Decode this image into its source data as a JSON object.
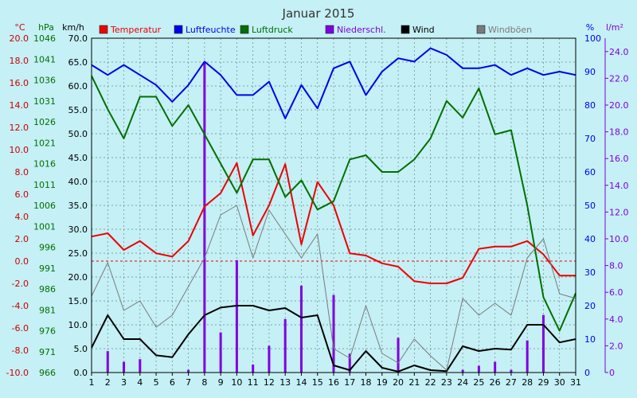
{
  "chart_data": {
    "type": "line",
    "title": "Januar 2015",
    "axis_units": {
      "temperature": "°C",
      "pressure": "hPa",
      "wind": "km/h",
      "humidity": "%",
      "precipitation": "l/m²"
    },
    "x": [
      1,
      2,
      3,
      4,
      5,
      6,
      7,
      8,
      9,
      10,
      11,
      12,
      13,
      14,
      15,
      16,
      17,
      18,
      19,
      20,
      21,
      22,
      23,
      24,
      25,
      26,
      27,
      28,
      29,
      30,
      31
    ],
    "axes": {
      "temperature": {
        "range": [
          -10,
          20
        ],
        "ticks": [
          "-10.0",
          "-8.0",
          "-6.0",
          "-4.0",
          "-2.0",
          "0.0",
          "2.0",
          "4.0",
          "6.0",
          "8.0",
          "10.0",
          "12.0",
          "14.0",
          "16.0",
          "18.0",
          "20.0"
        ]
      },
      "pressure": {
        "range": [
          966,
          1046
        ],
        "ticks": [
          "966",
          "971",
          "976",
          "981",
          "986",
          "991",
          "996",
          "1001",
          "1006",
          "1011",
          "1016",
          "1021",
          "1026",
          "1031",
          "1036",
          "1041",
          "1046"
        ]
      },
      "wind": {
        "range": [
          0,
          70
        ],
        "ticks": [
          "0.0",
          "5.0",
          "10.0",
          "15.0",
          "20.0",
          "25.0",
          "30.0",
          "35.0",
          "40.0",
          "45.0",
          "50.0",
          "55.0",
          "60.0",
          "65.0",
          "70.0"
        ]
      },
      "humidity": {
        "range": [
          0,
          100
        ],
        "ticks": [
          "0",
          "10",
          "20",
          "30",
          "40",
          "50",
          "60",
          "70",
          "80",
          "90",
          "100"
        ]
      },
      "precipitation": {
        "range": [
          0,
          25
        ],
        "ticks": [
          "0",
          "2.0",
          "4.0",
          "6.0",
          "8.0",
          "10.0",
          "12.0",
          "14.0",
          "16.0",
          "18.0",
          "20.0",
          "22.0",
          "24.0"
        ]
      }
    },
    "grid": true,
    "legend_position": "top",
    "series": [
      {
        "name": "Temperatur",
        "axis": "temperature",
        "color": "#ee0000",
        "kind": "line",
        "values": [
          2.2,
          2.5,
          1.0,
          1.8,
          0.7,
          0.4,
          1.8,
          4.9,
          6.1,
          8.8,
          2.3,
          5.0,
          8.7,
          1.5,
          7.1,
          5.0,
          0.7,
          0.5,
          -0.2,
          -0.5,
          -1.8,
          -2.0,
          -2.0,
          -1.5,
          1.1,
          1.3,
          1.3,
          1.8,
          0.6,
          -1.3,
          -1.3
        ]
      },
      {
        "name": "Luftfeuchte",
        "axis": "humidity",
        "color": "#0000ee",
        "kind": "line",
        "values": [
          92,
          89,
          92,
          89,
          86,
          81,
          86,
          93,
          89,
          83,
          83,
          87,
          76,
          86,
          79,
          91,
          93,
          83,
          90,
          94,
          93,
          97,
          95,
          91,
          91,
          92,
          89,
          91,
          89,
          90,
          89
        ]
      },
      {
        "name": "Luftdruck",
        "axis": "pressure",
        "color": "#007000",
        "kind": "line",
        "values": [
          1037,
          1029,
          1022,
          1032,
          1032,
          1025,
          1030,
          1023,
          1016,
          1009,
          1017,
          1017,
          1008,
          1012,
          1005,
          1007,
          1017,
          1018,
          1014,
          1014,
          1017,
          1022,
          1031,
          1027,
          1034,
          1023,
          1024,
          1006,
          984,
          976,
          985
        ]
      },
      {
        "name": "Niederschl.",
        "axis": "precipitation",
        "color": "#8000e0",
        "kind": "bar",
        "values": [
          0,
          1.6,
          0.8,
          1.0,
          0,
          0,
          0.2,
          23.2,
          3.0,
          8.4,
          0.6,
          2.0,
          4.0,
          6.5,
          0,
          5.8,
          1.4,
          0,
          0,
          2.6,
          0,
          0,
          0,
          0.2,
          0.5,
          0.8,
          0.2,
          2.4,
          4.3,
          0,
          0
        ]
      },
      {
        "name": "Wind",
        "axis": "wind",
        "color": "#000000",
        "kind": "line",
        "values": [
          5.2,
          12.0,
          7.0,
          7.0,
          3.6,
          3.2,
          8.0,
          12.0,
          13.6,
          14.0,
          14.0,
          13.0,
          13.5,
          11.5,
          12.0,
          1.5,
          0.5,
          4.5,
          1.0,
          0.2,
          1.5,
          0.5,
          0.3,
          5.5,
          4.5,
          5.0,
          4.8,
          10.0,
          10.0,
          6.3,
          7.0
        ]
      },
      {
        "name": "Windböen",
        "axis": "wind",
        "color": "#7a7a7a",
        "kind": "line",
        "values": [
          16.0,
          23.0,
          13.0,
          15.0,
          9.5,
          12.0,
          18.0,
          24.0,
          33.0,
          35.0,
          24.0,
          34.0,
          29.0,
          24.0,
          29.0,
          5.0,
          3.0,
          14.0,
          4.0,
          2.0,
          7.0,
          3.5,
          0.5,
          15.5,
          12.0,
          14.5,
          12.0,
          24.0,
          28.0,
          16.5,
          15.5
        ]
      }
    ]
  }
}
